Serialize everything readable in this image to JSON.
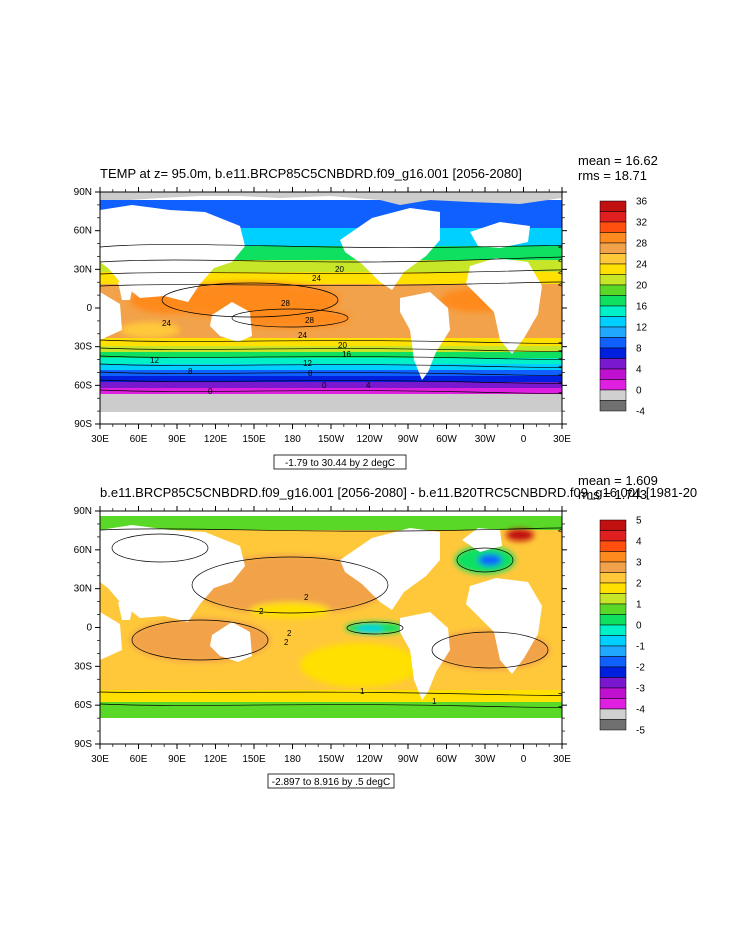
{
  "panels": [
    {
      "id": "top",
      "title": "TEMP at z=  95.0m, b.e11.BRCP85C5CNBDRD.f09_g16.001 [2056-2080]",
      "mean": "mean = 16.62",
      "rms": "rms = 18.71",
      "subtitle": "-1.79 to 30.44 by 2 degC",
      "colorbar_labels": [
        "36",
        "32",
        "28",
        "24",
        "20",
        "16",
        "12",
        "8",
        "4",
        "0",
        "-4"
      ],
      "colorbar_colors": [
        "#c01010",
        "#e02020",
        "#ff5010",
        "#ff8a1e",
        "#f2a24a",
        "#ffc83a",
        "#ffe000",
        "#c8e628",
        "#5ad828",
        "#10e060",
        "#00f0c8",
        "#00d0ff",
        "#20a8ff",
        "#1060ff",
        "#0020e0",
        "#7a18d0",
        "#c010d0",
        "#e020e0",
        "#d0d0d0",
        "#707070"
      ],
      "contour_labels": [
        "24",
        "20",
        "28",
        "28",
        "24",
        "24",
        "20",
        "16",
        "12",
        "12",
        "8",
        "8",
        "4",
        "0",
        "0"
      ]
    },
    {
      "id": "bottom",
      "title": "b.e11.BRCP85C5CNBDRD.f09_g16.001 [2056-2080] - b.e11.B20TRC5CNBDRD.f09_g16.001 [1981-20",
      "mean": "mean = 1.609",
      "rms": "rms = 1.743",
      "subtitle": "-2.897 to 8.916 by .5 degC",
      "colorbar_labels": [
        "5",
        "4",
        "3",
        "2",
        "1",
        "0",
        "-1",
        "-2",
        "-3",
        "-4",
        "-5"
      ],
      "colorbar_colors": [
        "#c01010",
        "#e02020",
        "#ff5010",
        "#ff8a1e",
        "#f2a24a",
        "#ffc83a",
        "#ffe000",
        "#c8e628",
        "#5ad828",
        "#10e060",
        "#00f0c8",
        "#00d0ff",
        "#20a8ff",
        "#1060ff",
        "#0020e0",
        "#7a18d0",
        "#c010d0",
        "#e020e0",
        "#d0d0d0",
        "#707070"
      ],
      "contour_labels": [
        "2",
        "2",
        "2",
        "2",
        "1",
        "1"
      ]
    }
  ],
  "axes": {
    "lat_labels": [
      "90N",
      "60N",
      "30N",
      "0",
      "30S",
      "60S",
      "90S"
    ],
    "lon_labels": [
      "30E",
      "60E",
      "90E",
      "120E",
      "150E",
      "180",
      "150W",
      "120W",
      "90W",
      "60W",
      "30W",
      "0",
      "30E"
    ]
  },
  "colors": {
    "land": "#ffffff",
    "ice": "#cccccc"
  }
}
